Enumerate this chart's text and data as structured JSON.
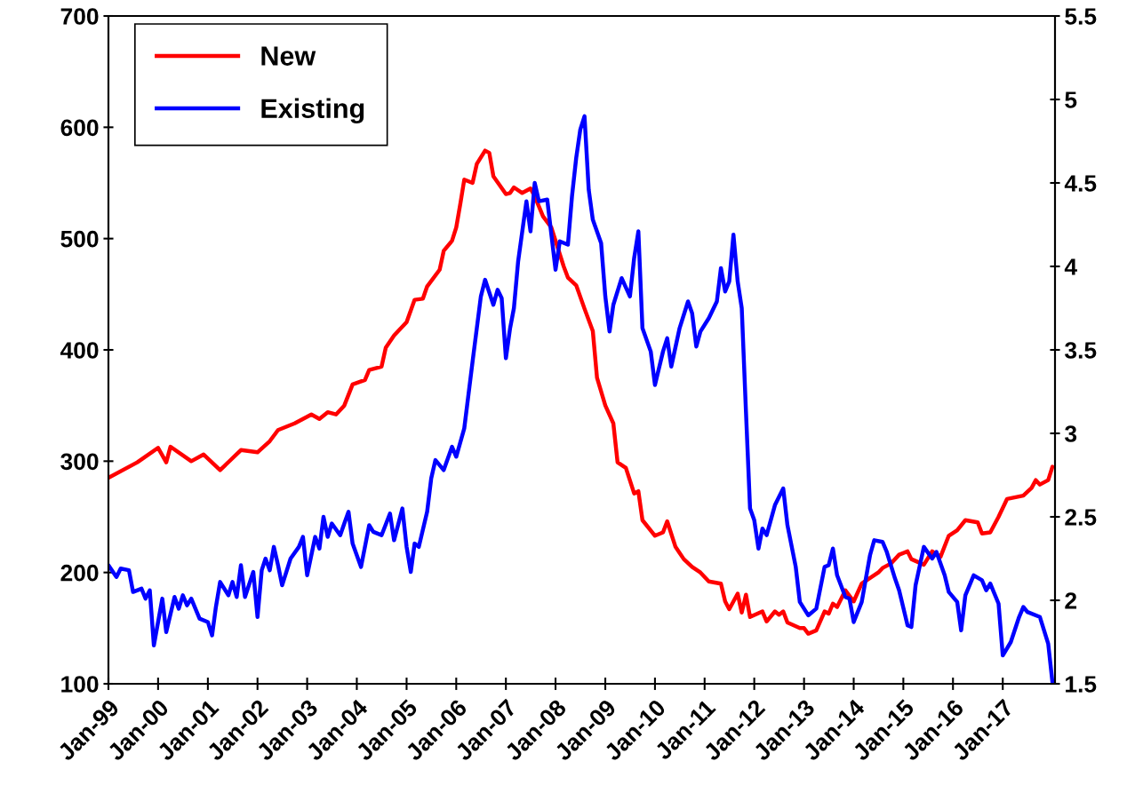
{
  "chart_data": {
    "type": "line",
    "xlim": [
      "1999-01",
      "2018-01-20"
    ],
    "xticks": [
      {
        "value": "1999-01",
        "label": "Jan-99"
      },
      {
        "value": "2000-01",
        "label": "Jan-00"
      },
      {
        "value": "2001-01",
        "label": "Jan-01"
      },
      {
        "value": "2002-01",
        "label": "Jan-02"
      },
      {
        "value": "2003-01",
        "label": "Jan-03"
      },
      {
        "value": "2004-01",
        "label": "Jan-04"
      },
      {
        "value": "2005-01",
        "label": "Jan-05"
      },
      {
        "value": "2006-01",
        "label": "Jan-06"
      },
      {
        "value": "2007-01",
        "label": "Jan-07"
      },
      {
        "value": "2008-01",
        "label": "Jan-08"
      },
      {
        "value": "2009-01",
        "label": "Jan-09"
      },
      {
        "value": "2010-01",
        "label": "Jan-10"
      },
      {
        "value": "2011-01",
        "label": "Jan-11"
      },
      {
        "value": "2012-01",
        "label": "Jan-12"
      },
      {
        "value": "2013-01",
        "label": "Jan-13"
      },
      {
        "value": "2014-01",
        "label": "Jan-14"
      },
      {
        "value": "2015-01",
        "label": "Jan-15"
      },
      {
        "value": "2016-01",
        "label": "Jan-16"
      },
      {
        "value": "2017-01",
        "label": "Jan-17"
      }
    ],
    "ylim": [
      100,
      700
    ],
    "yticks": [
      100,
      200,
      300,
      400,
      500,
      600,
      700
    ],
    "y2lim": [
      1.5,
      5.5
    ],
    "y2ticks": [
      1.5,
      2,
      2.5,
      3,
      3.5,
      4,
      4.5,
      5,
      5.5
    ],
    "legend": "top left",
    "grid": false,
    "marker": "none",
    "line_style": "solid",
    "series": [
      {
        "name": "New",
        "color": "#ff0000",
        "x": [
          "1999-01",
          "1999-08",
          "2000-01",
          "2000-03",
          "2000-04",
          "2000-09",
          "2000-12",
          "2001-04",
          "2001-09",
          "2002-01",
          "2002-04",
          "2002-06",
          "2002-10",
          "2003-02",
          "2003-04",
          "2003-06",
          "2003-08",
          "2003-10",
          "2003-12",
          "2004-03",
          "2004-04",
          "2004-07",
          "2004-08",
          "2004-10",
          "2005-01",
          "2005-03",
          "2005-05",
          "2005-06",
          "2005-09",
          "2005-10",
          "2005-12",
          "2006-01",
          "2006-02",
          "2006-03",
          "2006-05",
          "2006-06",
          "2006-08",
          "2006-09",
          "2006-10",
          "2007-01",
          "2007-02",
          "2007-03",
          "2007-05",
          "2007-07",
          "2007-08",
          "2007-10",
          "2007-12",
          "2008-03",
          "2008-04",
          "2008-06",
          "2008-08",
          "2008-10",
          "2008-11",
          "2009-01",
          "2009-03",
          "2009-04",
          "2009-06",
          "2009-08",
          "2009-09",
          "2009-10",
          "2010-01",
          "2010-03",
          "2010-04",
          "2010-06",
          "2010-08",
          "2010-10",
          "2010-12",
          "2011-02",
          "2011-05",
          "2011-06",
          "2011-07",
          "2011-09",
          "2011-10",
          "2011-11",
          "2011-12",
          "2012-03",
          "2012-04",
          "2012-06",
          "2012-07",
          "2012-08",
          "2012-09",
          "2012-12",
          "2013-01",
          "2013-02",
          "2013-04",
          "2013-06",
          "2013-07",
          "2013-08",
          "2013-09",
          "2013-11",
          "2014-01",
          "2014-03",
          "2014-05",
          "2014-07",
          "2014-08",
          "2014-10",
          "2014-12",
          "2015-02",
          "2015-03",
          "2015-06",
          "2015-08",
          "2015-10",
          "2015-12",
          "2016-02",
          "2016-04",
          "2016-07",
          "2016-08",
          "2016-10",
          "2016-12",
          "2017-02",
          "2017-06",
          "2017-08",
          "2017-09",
          "2017-10",
          "2017-12",
          "2018-01"
        ],
        "values": [
          285,
          299,
          312,
          299,
          313,
          300,
          306,
          292,
          310,
          308,
          318,
          328,
          334,
          342,
          338,
          344,
          342,
          350,
          369,
          373,
          382,
          385,
          402,
          413,
          425,
          445,
          446,
          457,
          472,
          489,
          498,
          510,
          532,
          553,
          550,
          567,
          579,
          577,
          556,
          540,
          541,
          546,
          541,
          545,
          538,
          520,
          510,
          475,
          465,
          458,
          437,
          417,
          375,
          350,
          334,
          299,
          294,
          271,
          273,
          247,
          233,
          236,
          246,
          223,
          212,
          205,
          200,
          192,
          190,
          174,
          167,
          181,
          164,
          180,
          160,
          165,
          156,
          165,
          162,
          165,
          155,
          150,
          150,
          145,
          148,
          165,
          163,
          172,
          169,
          184,
          174,
          190,
          195,
          200,
          204,
          208,
          216,
          219,
          212,
          207,
          219,
          214,
          233,
          238,
          247,
          245,
          235,
          236,
          250,
          266,
          269,
          276,
          283,
          279,
          283,
          295
        ]
      },
      {
        "name": "Existing",
        "color": "#0000ff",
        "axis": "y2",
        "x": [
          "1999-01",
          "1999-03",
          "1999-04",
          "1999-06",
          "1999-07",
          "1999-09",
          "1999-10",
          "1999-11",
          "1999-12",
          "2000-02",
          "2000-03",
          "2000-05",
          "2000-06",
          "2000-07",
          "2000-08",
          "2000-09",
          "2000-11",
          "2001-01",
          "2001-02",
          "2001-03",
          "2001-04",
          "2001-06",
          "2001-07",
          "2001-08",
          "2001-09",
          "2001-10",
          "2001-12",
          "2002-01",
          "2002-02",
          "2002-03",
          "2002-04",
          "2002-05",
          "2002-06",
          "2002-07",
          "2002-09",
          "2002-11",
          "2002-12",
          "2003-01",
          "2003-03",
          "2003-04",
          "2003-05",
          "2003-06",
          "2003-07",
          "2003-09",
          "2003-10",
          "2003-11",
          "2003-12",
          "2004-02",
          "2004-04",
          "2004-05",
          "2004-07",
          "2004-09",
          "2004-10",
          "2004-12",
          "2005-01",
          "2005-02",
          "2005-03",
          "2005-04",
          "2005-06",
          "2005-07",
          "2005-08",
          "2005-10",
          "2005-12",
          "2006-01",
          "2006-03",
          "2006-05",
          "2006-07",
          "2006-08",
          "2006-10",
          "2006-11",
          "2006-12",
          "2007-01",
          "2007-02",
          "2007-03",
          "2007-04",
          "2007-06",
          "2007-07",
          "2007-08",
          "2007-09",
          "2007-11",
          "2008-01",
          "2008-02",
          "2008-04",
          "2008-05",
          "2008-06",
          "2008-07",
          "2008-08",
          "2008-09",
          "2008-10",
          "2008-12",
          "2009-01",
          "2009-02",
          "2009-03",
          "2009-05",
          "2009-07",
          "2009-08",
          "2009-09",
          "2009-10",
          "2009-12",
          "2010-01",
          "2010-03",
          "2010-04",
          "2010-05",
          "2010-07",
          "2010-09",
          "2010-10",
          "2010-11",
          "2010-12",
          "2011-02",
          "2011-04",
          "2011-05",
          "2011-06",
          "2011-07",
          "2011-08",
          "2011-09",
          "2011-10",
          "2011-11",
          "2011-12",
          "2012-01",
          "2012-02",
          "2012-03",
          "2012-04",
          "2012-06",
          "2012-08",
          "2012-09",
          "2012-11",
          "2012-12",
          "2013-02",
          "2013-04",
          "2013-06",
          "2013-07",
          "2013-08",
          "2013-09",
          "2013-11",
          "2013-12",
          "2014-01",
          "2014-03",
          "2014-05",
          "2014-06",
          "2014-08",
          "2014-09",
          "2014-11",
          "2014-12",
          "2015-02",
          "2015-03",
          "2015-04",
          "2015-06",
          "2015-08",
          "2015-09",
          "2015-11",
          "2015-12",
          "2016-02",
          "2016-03",
          "2016-04",
          "2016-06",
          "2016-08",
          "2016-09",
          "2016-10",
          "2016-12",
          "2017-01",
          "2017-03",
          "2017-05",
          "2017-06",
          "2017-07",
          "2017-10",
          "2017-12",
          "2018-01"
        ],
        "values": [
          2.21,
          2.14,
          2.19,
          2.18,
          2.05,
          2.07,
          2.01,
          2.06,
          1.73,
          2.01,
          1.81,
          2.02,
          1.95,
          2.03,
          1.97,
          2.01,
          1.89,
          1.87,
          1.79,
          1.96,
          2.11,
          2.03,
          2.11,
          2.02,
          2.21,
          2.02,
          2.17,
          1.9,
          2.18,
          2.25,
          2.18,
          2.32,
          2.21,
          2.09,
          2.25,
          2.32,
          2.38,
          2.15,
          2.38,
          2.31,
          2.5,
          2.38,
          2.46,
          2.39,
          2.46,
          2.53,
          2.34,
          2.2,
          2.45,
          2.41,
          2.39,
          2.52,
          2.36,
          2.55,
          2.32,
          2.17,
          2.34,
          2.32,
          2.53,
          2.73,
          2.84,
          2.78,
          2.92,
          2.86,
          3.03,
          3.43,
          3.82,
          3.92,
          3.77,
          3.86,
          3.81,
          3.45,
          3.63,
          3.75,
          4.03,
          4.39,
          4.21,
          4.5,
          4.39,
          4.4,
          3.98,
          4.15,
          4.13,
          4.42,
          4.65,
          4.82,
          4.9,
          4.46,
          4.28,
          4.14,
          3.82,
          3.61,
          3.77,
          3.93,
          3.82,
          4.05,
          4.21,
          3.63,
          3.49,
          3.29,
          3.49,
          3.57,
          3.4,
          3.63,
          3.79,
          3.72,
          3.52,
          3.61,
          3.69,
          3.79,
          3.99,
          3.85,
          3.91,
          4.19,
          3.91,
          3.75,
          3.13,
          2.55,
          2.48,
          2.31,
          2.43,
          2.39,
          2.57,
          2.67,
          2.45,
          2.2,
          1.99,
          1.91,
          1.95,
          2.2,
          2.21,
          2.31,
          2.15,
          2.02,
          2.01,
          1.87,
          1.99,
          2.27,
          2.36,
          2.35,
          2.29,
          2.13,
          2.06,
          1.85,
          1.84,
          2.09,
          2.32,
          2.25,
          2.29,
          2.15,
          2.05,
          1.99,
          1.82,
          2.03,
          2.15,
          2.12,
          2.06,
          2.1,
          1.98,
          1.67,
          1.75,
          1.9,
          1.96,
          1.93,
          1.9,
          1.74,
          1.51
        ]
      }
    ]
  }
}
